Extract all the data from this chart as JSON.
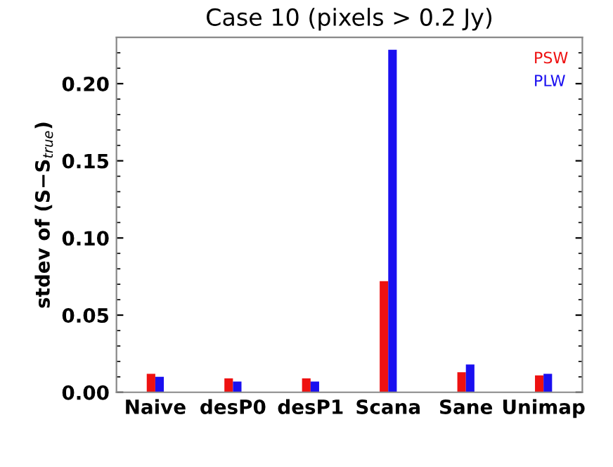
{
  "chart_data": {
    "type": "bar",
    "title": "Case 10 (pixels > 0.2 Jy)",
    "ylabel": "stdev of (S−S$_{true}$)",
    "categories": [
      "Naive",
      "desP0",
      "desP1",
      "Scana",
      "Sane",
      "Unimap"
    ],
    "series": [
      {
        "name": "PSW",
        "color": "#ee1111",
        "values": [
          0.012,
          0.009,
          0.009,
          0.072,
          0.013,
          0.011
        ]
      },
      {
        "name": "PLW",
        "color": "#1a0ff0",
        "values": [
          0.01,
          0.007,
          0.007,
          0.222,
          0.018,
          0.012
        ]
      }
    ],
    "ylim": [
      0,
      0.23
    ],
    "yticks": [
      {
        "value": 0,
        "label": "0.00"
      },
      {
        "value": 0.05,
        "label": "0.05"
      },
      {
        "value": 0.1,
        "label": "0.10"
      },
      {
        "value": 0.15,
        "label": "0.15"
      },
      {
        "value": 0.2,
        "label": "0.20"
      }
    ],
    "legend": "top right",
    "grid": false
  }
}
